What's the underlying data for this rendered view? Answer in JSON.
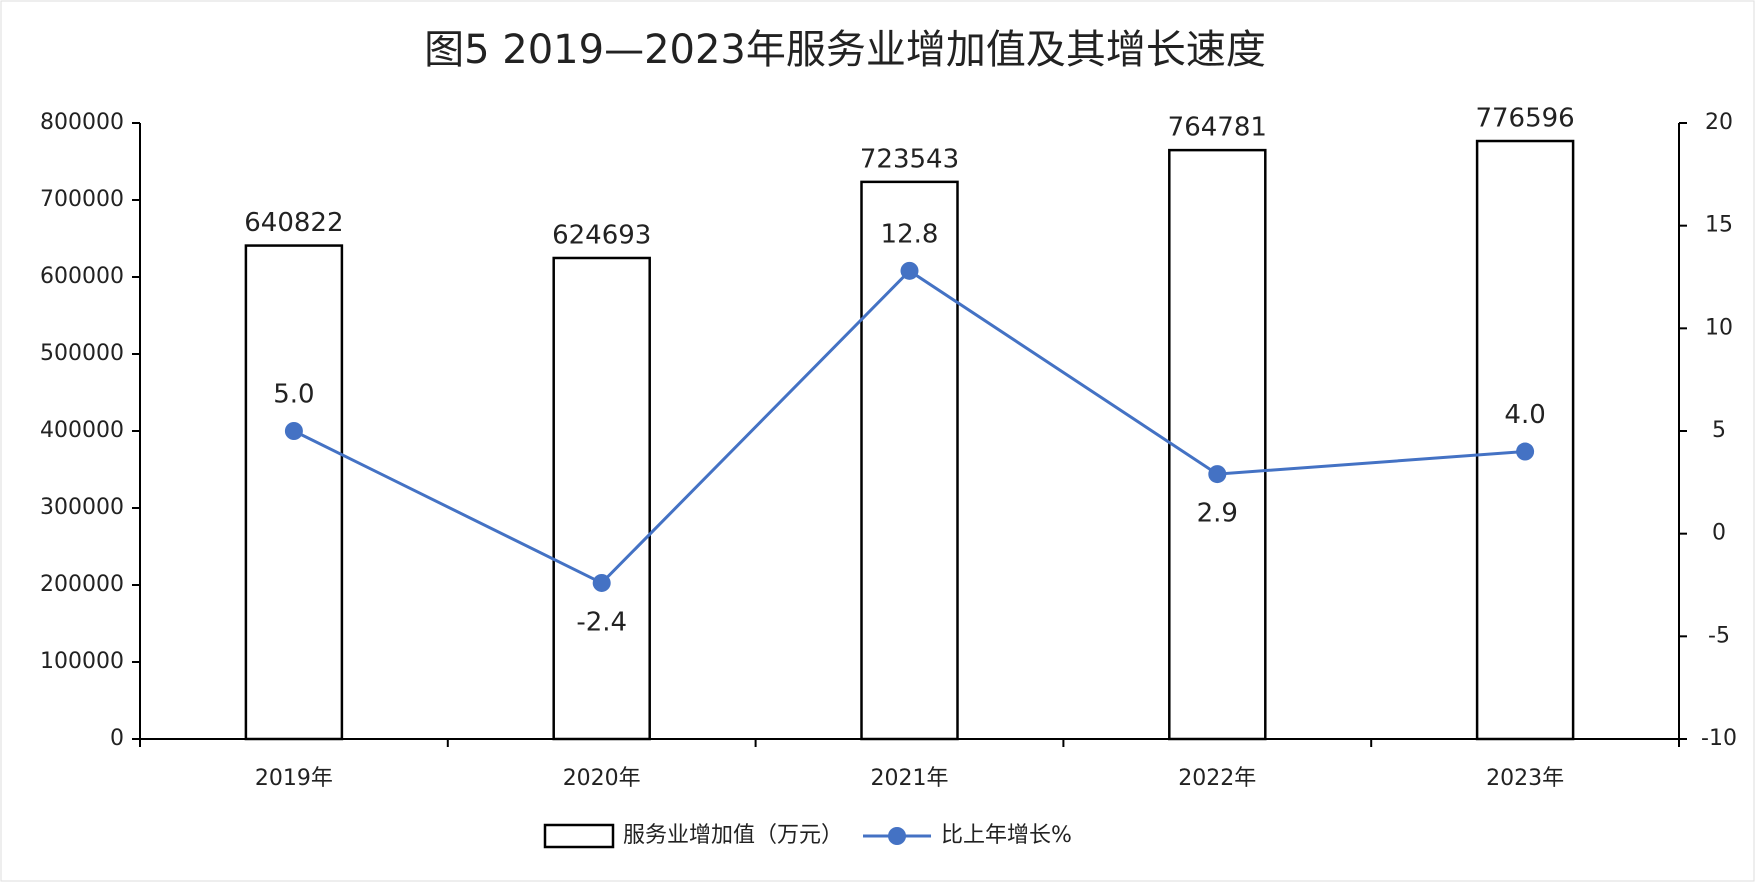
{
  "chart_data": {
    "type": "bar",
    "title": "图5  2019—2023年服务业增加值及其增长速度",
    "categories": [
      "2019年",
      "2020年",
      "2021年",
      "2022年",
      "2023年"
    ],
    "series": [
      {
        "name": "服务业增加值（万元）",
        "type": "bar",
        "color": "#ffffff",
        "values": [
          640822,
          624693,
          723543,
          764781,
          776596
        ]
      },
      {
        "name": "比上年增长%",
        "type": "line",
        "axis": "y2",
        "color": "#4472c4",
        "values": [
          5.0,
          -2.4,
          12.8,
          2.9,
          4.0
        ],
        "value_labels": [
          "5.0",
          "-2.4",
          "12.8",
          "2.9",
          "4.0"
        ]
      }
    ],
    "ylim": [
      0,
      800000
    ],
    "yticks": [
      0,
      100000,
      200000,
      300000,
      400000,
      500000,
      600000,
      700000,
      800000
    ],
    "y2lim": [
      -10,
      20
    ],
    "y2ticks": [
      -10,
      -5,
      0,
      5,
      10,
      15,
      20
    ]
  }
}
